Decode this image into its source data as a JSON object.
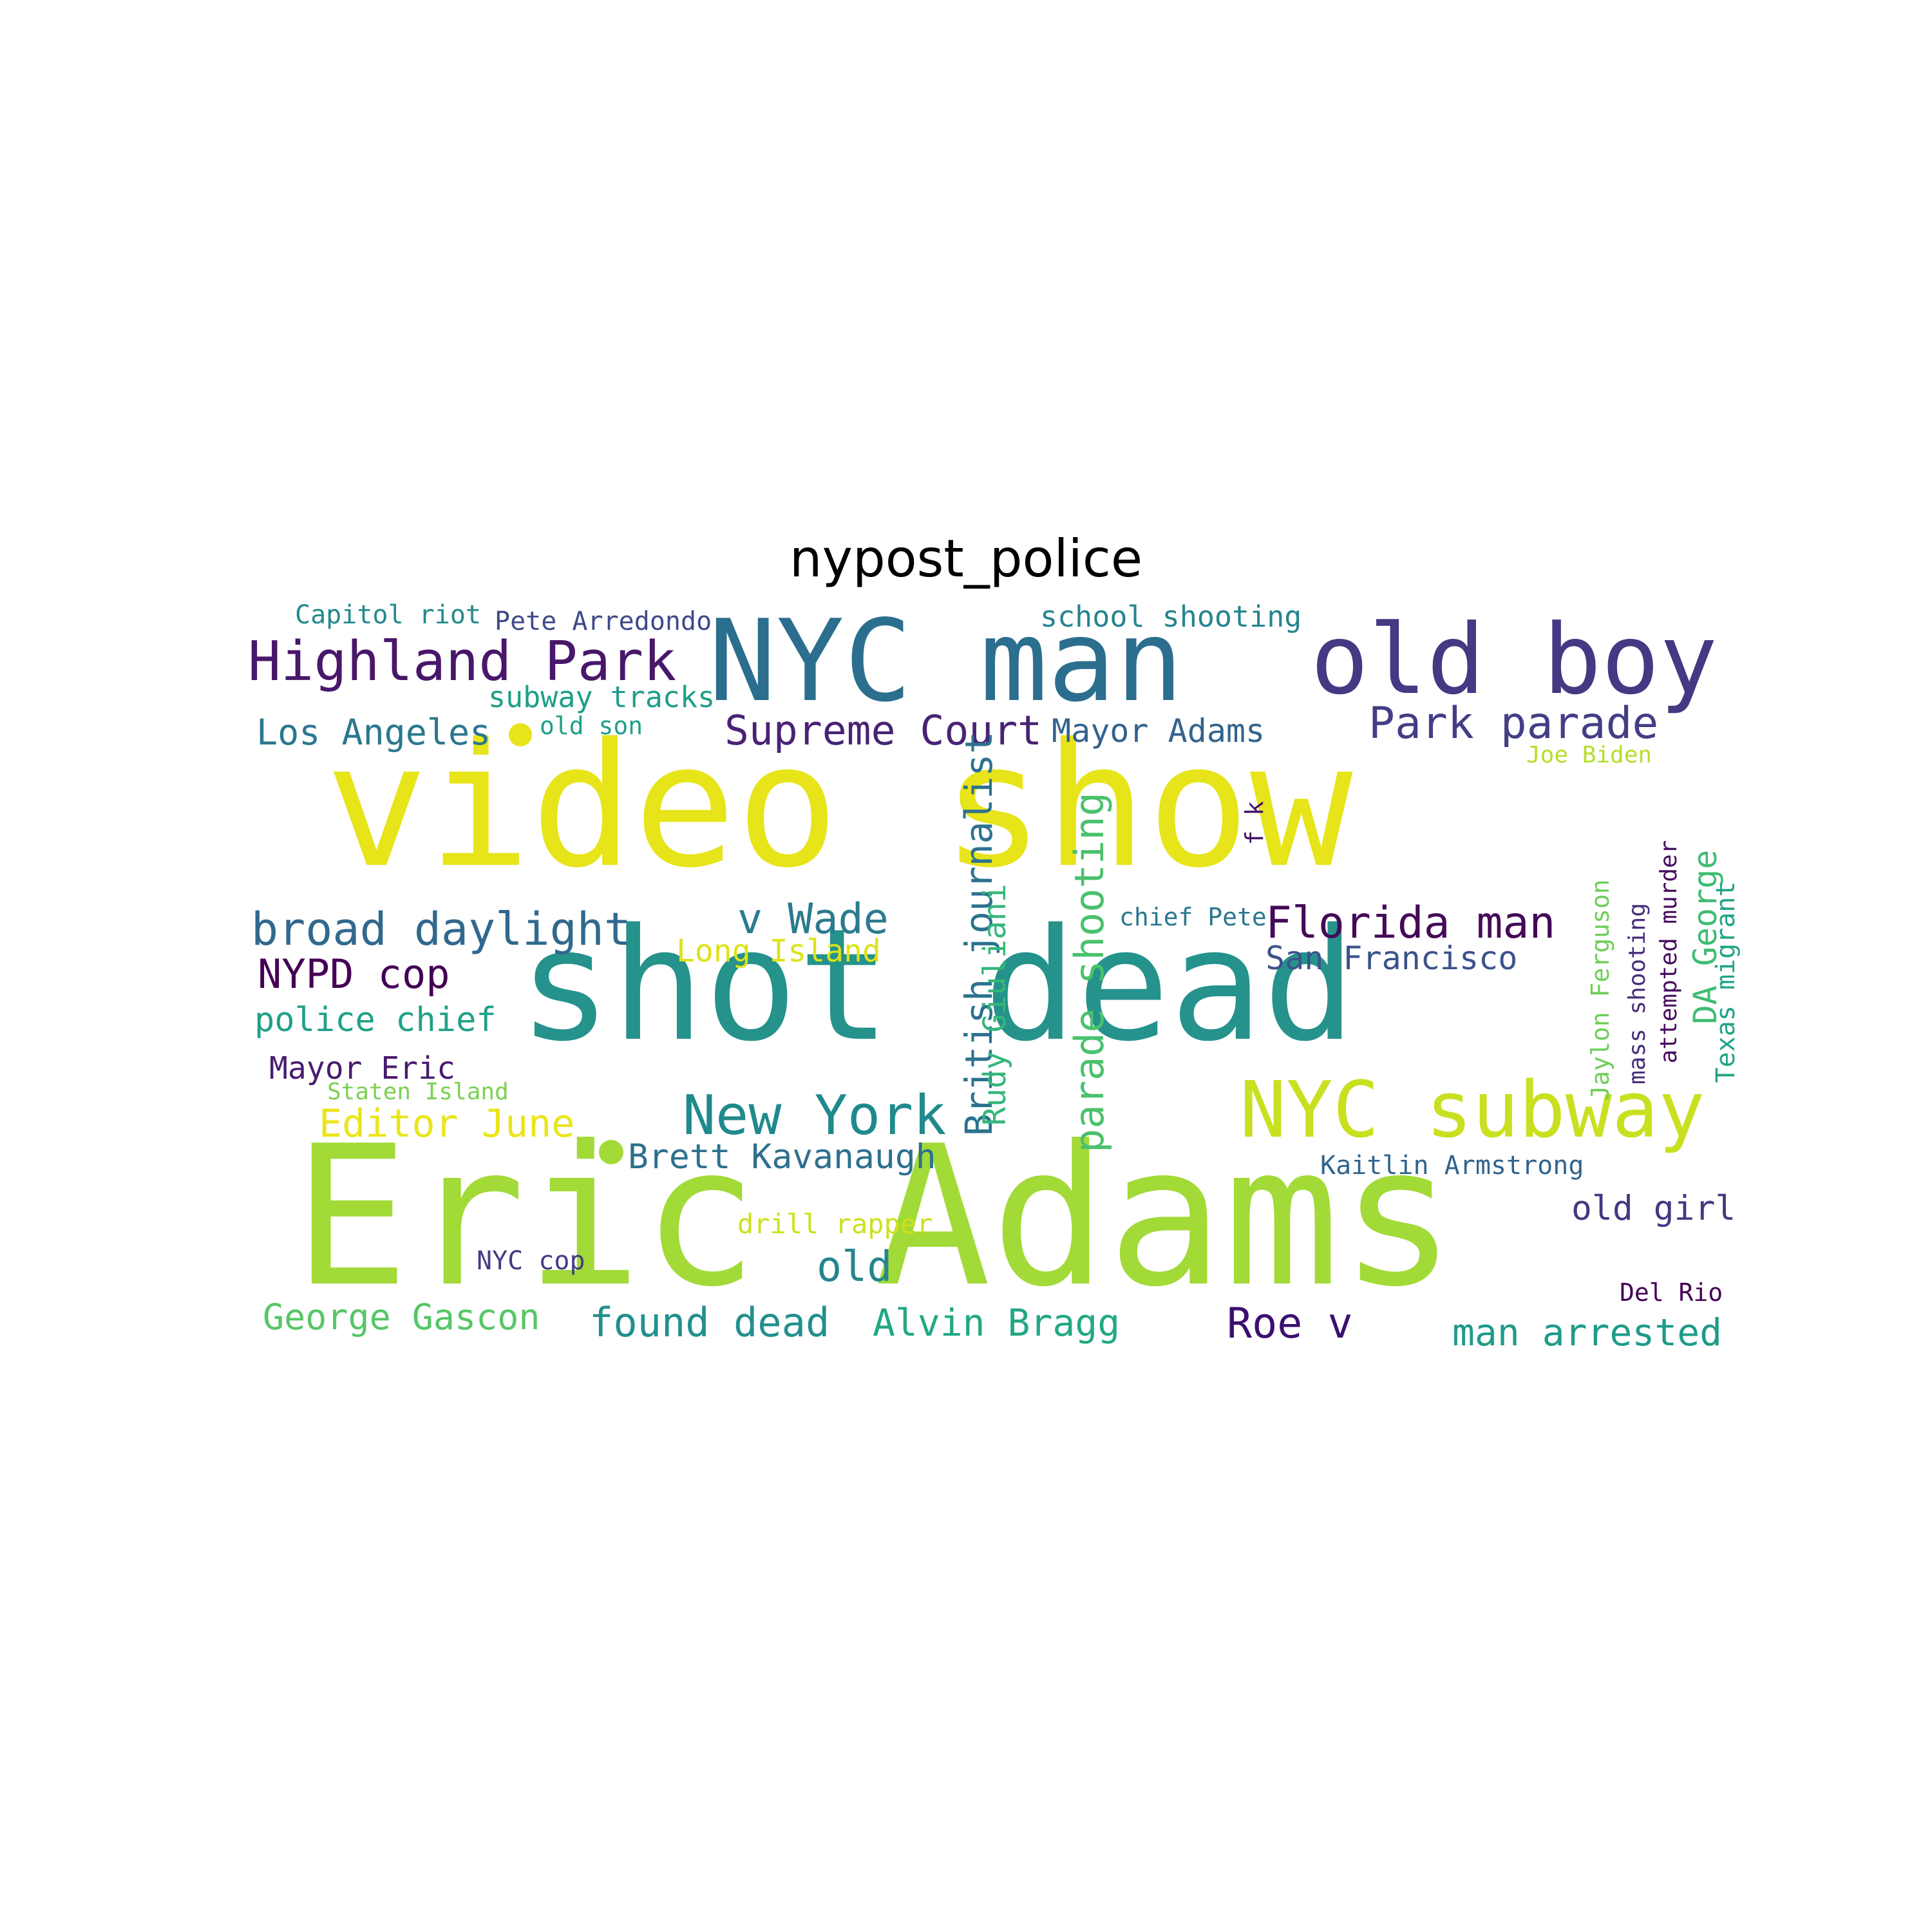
{
  "title": "nypost_police",
  "words": [
    {
      "text": "video show",
      "color": "#e7e419"
    },
    {
      "text": "shot dead",
      "color": "#25928c"
    },
    {
      "text": "Eric Adams",
      "color": "#a2da37"
    },
    {
      "text": "NYC man",
      "color": "#2c6e8e"
    },
    {
      "text": "old boy",
      "color": "#443983"
    },
    {
      "text": "Highland Park",
      "color": "#48176a"
    },
    {
      "text": "NYC subway",
      "color": "#c8e020"
    },
    {
      "text": "New York",
      "color": "#1f8a8c"
    },
    {
      "text": "broad daylight",
      "color": "#31688e"
    },
    {
      "text": "Florida man",
      "color": "#440a57"
    },
    {
      "text": "Park parade",
      "color": "#433e85"
    },
    {
      "text": "Supreme Court",
      "color": "#482374"
    },
    {
      "text": "v Wade",
      "color": "#2b7b8e"
    },
    {
      "text": "NYPD cop",
      "color": "#440154"
    },
    {
      "text": "Editor June",
      "color": "#eae51a"
    },
    {
      "text": "found dead",
      "color": "#21908d"
    },
    {
      "text": "Alvin Bragg",
      "color": "#22a884"
    },
    {
      "text": "Roe v",
      "color": "#3b0f70"
    },
    {
      "text": "man arrested",
      "color": "#1e9b8a"
    },
    {
      "text": "old",
      "color": "#25858e"
    },
    {
      "text": "George Gascon",
      "color": "#56c667"
    },
    {
      "text": "Los Angeles",
      "color": "#2a778e"
    },
    {
      "text": "police chief",
      "color": "#1fa187"
    },
    {
      "text": "Brett Kavanaugh",
      "color": "#2d708e"
    },
    {
      "text": "Mayor Adams",
      "color": "#33638d"
    },
    {
      "text": "San Francisco",
      "color": "#3b528b"
    },
    {
      "text": "old girl",
      "color": "#453781"
    },
    {
      "text": "Mayor Eric",
      "color": "#481c6e"
    },
    {
      "text": "Long Island",
      "color": "#dde318"
    },
    {
      "text": "school shooting",
      "color": "#25848e"
    },
    {
      "text": "subway tracks",
      "color": "#1f9f88"
    },
    {
      "text": "Capitol riot",
      "color": "#238a8d"
    },
    {
      "text": "Pete Arredondo",
      "color": "#3e4a89"
    },
    {
      "text": "drill rapper",
      "color": "#cde11d"
    },
    {
      "text": "Kaitlin Armstrong",
      "color": "#32648e"
    },
    {
      "text": "NYC cop",
      "color": "#443b84"
    },
    {
      "text": "chief Pete",
      "color": "#2a788e"
    },
    {
      "text": "old son",
      "color": "#1fa088"
    },
    {
      "text": "Staten Island",
      "color": "#7ad151"
    },
    {
      "text": "Joe Biden",
      "color": "#b5de2b"
    },
    {
      "text": "Del Rio",
      "color": "#440154"
    },
    {
      "text": "British journalist",
      "color": "#2c728e"
    },
    {
      "text": "parade shooting",
      "color": "#4ac16d"
    },
    {
      "text": "Rudy Giuliani",
      "color": "#35b779"
    },
    {
      "text": "f k",
      "color": "#481467"
    },
    {
      "text": "DA George",
      "color": "#3fbc73"
    },
    {
      "text": "Texas migrant",
      "color": "#20a486"
    },
    {
      "text": "Jaylon Ferguson",
      "color": "#6ece58"
    },
    {
      "text": "mass shooting",
      "color": "#472d7b"
    },
    {
      "text": "attempted murder",
      "color": "#460b5e"
    }
  ],
  "dots": [
    {
      "color": "#e7e419"
    },
    {
      "color": "#a2da37"
    }
  ]
}
